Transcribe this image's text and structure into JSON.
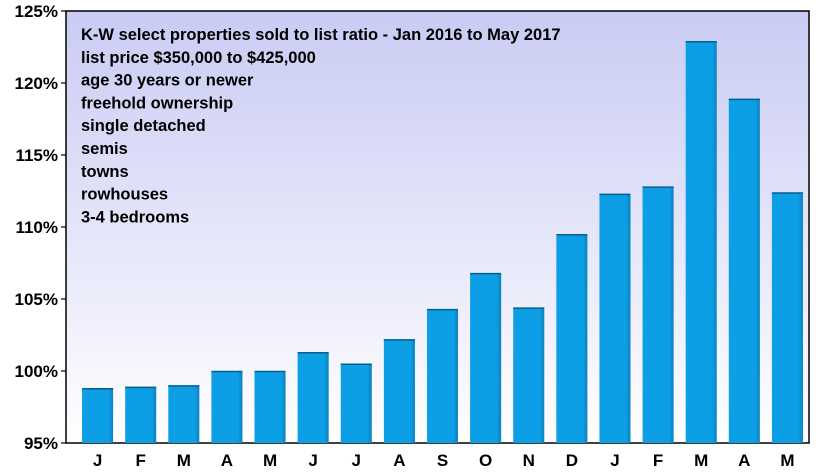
{
  "chart_data": {
    "type": "bar",
    "title": "",
    "xlabel": "",
    "ylabel": "",
    "categories": [
      "J",
      "F",
      "M",
      "A",
      "M",
      "J",
      "J",
      "A",
      "S",
      "O",
      "N",
      "D",
      "J",
      "F",
      "M",
      "A",
      "M"
    ],
    "values": [
      98.8,
      98.9,
      99.0,
      100.0,
      100.0,
      101.3,
      100.5,
      102.2,
      104.3,
      106.8,
      104.4,
      109.5,
      112.3,
      112.8,
      122.9,
      118.9,
      112.4
    ],
    "ylim": [
      95,
      125
    ],
    "yticks": [
      95,
      100,
      105,
      110,
      115,
      120,
      125
    ],
    "ytick_labels": [
      "95%",
      "100%",
      "105%",
      "110%",
      "115%",
      "120%",
      "125%"
    ],
    "grid": false,
    "bar_color": "#0d9fe6",
    "background_gradient": [
      "#c9cbf3",
      "#ffffff"
    ],
    "annotation_lines": [
      "K-W select properties sold to list ratio - Jan 2016 to May 2017",
      "list price $350,000 to $425,000",
      "age 30 years or newer",
      "freehold ownership",
      "single detached",
      "semis",
      "towns",
      "rowhouses",
      "3-4 bedrooms"
    ]
  }
}
